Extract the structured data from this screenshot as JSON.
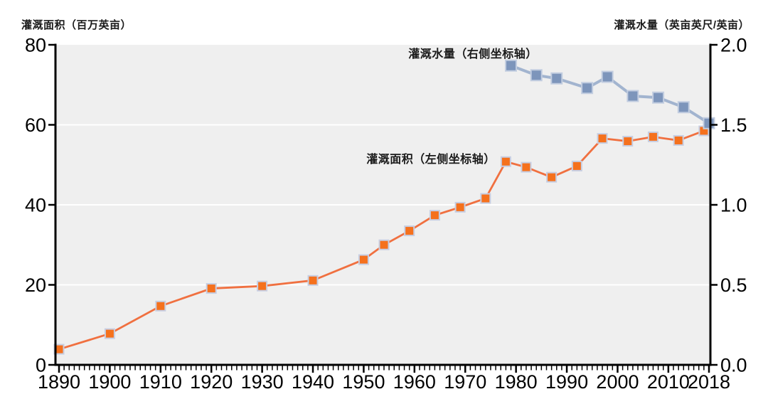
{
  "chart_data": {
    "type": "line",
    "title": "",
    "plot_bg_color": "#EFEFEF",
    "grid_color": "#FFFFFF",
    "axis_color": "#000000",
    "left_axis": {
      "title": "灌溉面积（百万英亩）",
      "range": [
        0,
        80
      ],
      "tick_values": [
        0,
        20,
        40,
        60,
        80
      ],
      "tick_labels": [
        "0",
        "20",
        "40",
        "60",
        "80"
      ],
      "gridline_values": [
        20,
        40,
        60
      ]
    },
    "right_axis": {
      "title": "灌溉水量（英亩英尺/英亩）",
      "range": [
        0,
        2.0
      ],
      "tick_values": [
        0,
        0.5,
        1.0,
        1.5,
        2.0
      ],
      "tick_labels": [
        "0.0",
        "0.5",
        "1.0",
        "1.5",
        "2.0"
      ]
    },
    "x_axis": {
      "range": [
        1890,
        2018
      ],
      "minor_tick_interval_years": 1,
      "major_tick_years": [
        1890,
        1900,
        1910,
        1920,
        1930,
        1940,
        1950,
        1960,
        1970,
        1980,
        1990,
        2000,
        2010,
        2018
      ],
      "major_tick_labels": [
        "1890",
        "1900",
        "1910",
        "1920",
        "1930",
        "1940",
        "1950",
        "1960",
        "1970",
        "1980",
        "1990",
        "2000",
        "2010",
        "2018"
      ]
    },
    "series": [
      {
        "id": "irrigated-area",
        "label": "灌溉面积（左侧坐标轴）",
        "axis": "left",
        "line_color": "#F07040",
        "marker_color": "#F5711D",
        "marker_border_color": "#C7CEE2",
        "x": [
          1890,
          1900,
          1910,
          1920,
          1930,
          1940,
          1950,
          1954,
          1959,
          1964,
          1969,
          1974,
          1978,
          1982,
          1987,
          1992,
          1997,
          2002,
          2007,
          2012,
          2017
        ],
        "y": [
          3.9,
          7.8,
          14.7,
          19.1,
          19.7,
          21.1,
          26.3,
          30.0,
          33.5,
          37.4,
          39.4,
          41.6,
          50.8,
          49.4,
          46.9,
          49.7,
          56.6,
          55.9,
          57.0,
          56.1,
          58.5
        ]
      },
      {
        "id": "water-applied",
        "label": "灌溉水量（右侧坐标轴）",
        "axis": "right",
        "line_color": "#A2B4CF",
        "marker_color": "#7D95BB",
        "marker_border_color": "#C2CDE0",
        "x": [
          1979,
          1984,
          1988,
          1994,
          1998,
          2003,
          2008,
          2013,
          2018
        ],
        "y": [
          1.87,
          1.81,
          1.79,
          1.73,
          1.8,
          1.68,
          1.67,
          1.61,
          1.51
        ]
      }
    ],
    "annotations": [
      {
        "text": "灌溉水量（右侧坐标轴）",
        "series": "water-applied"
      },
      {
        "text": "灌溉面积（左侧坐标轴）",
        "series": "irrigated-area"
      }
    ]
  }
}
